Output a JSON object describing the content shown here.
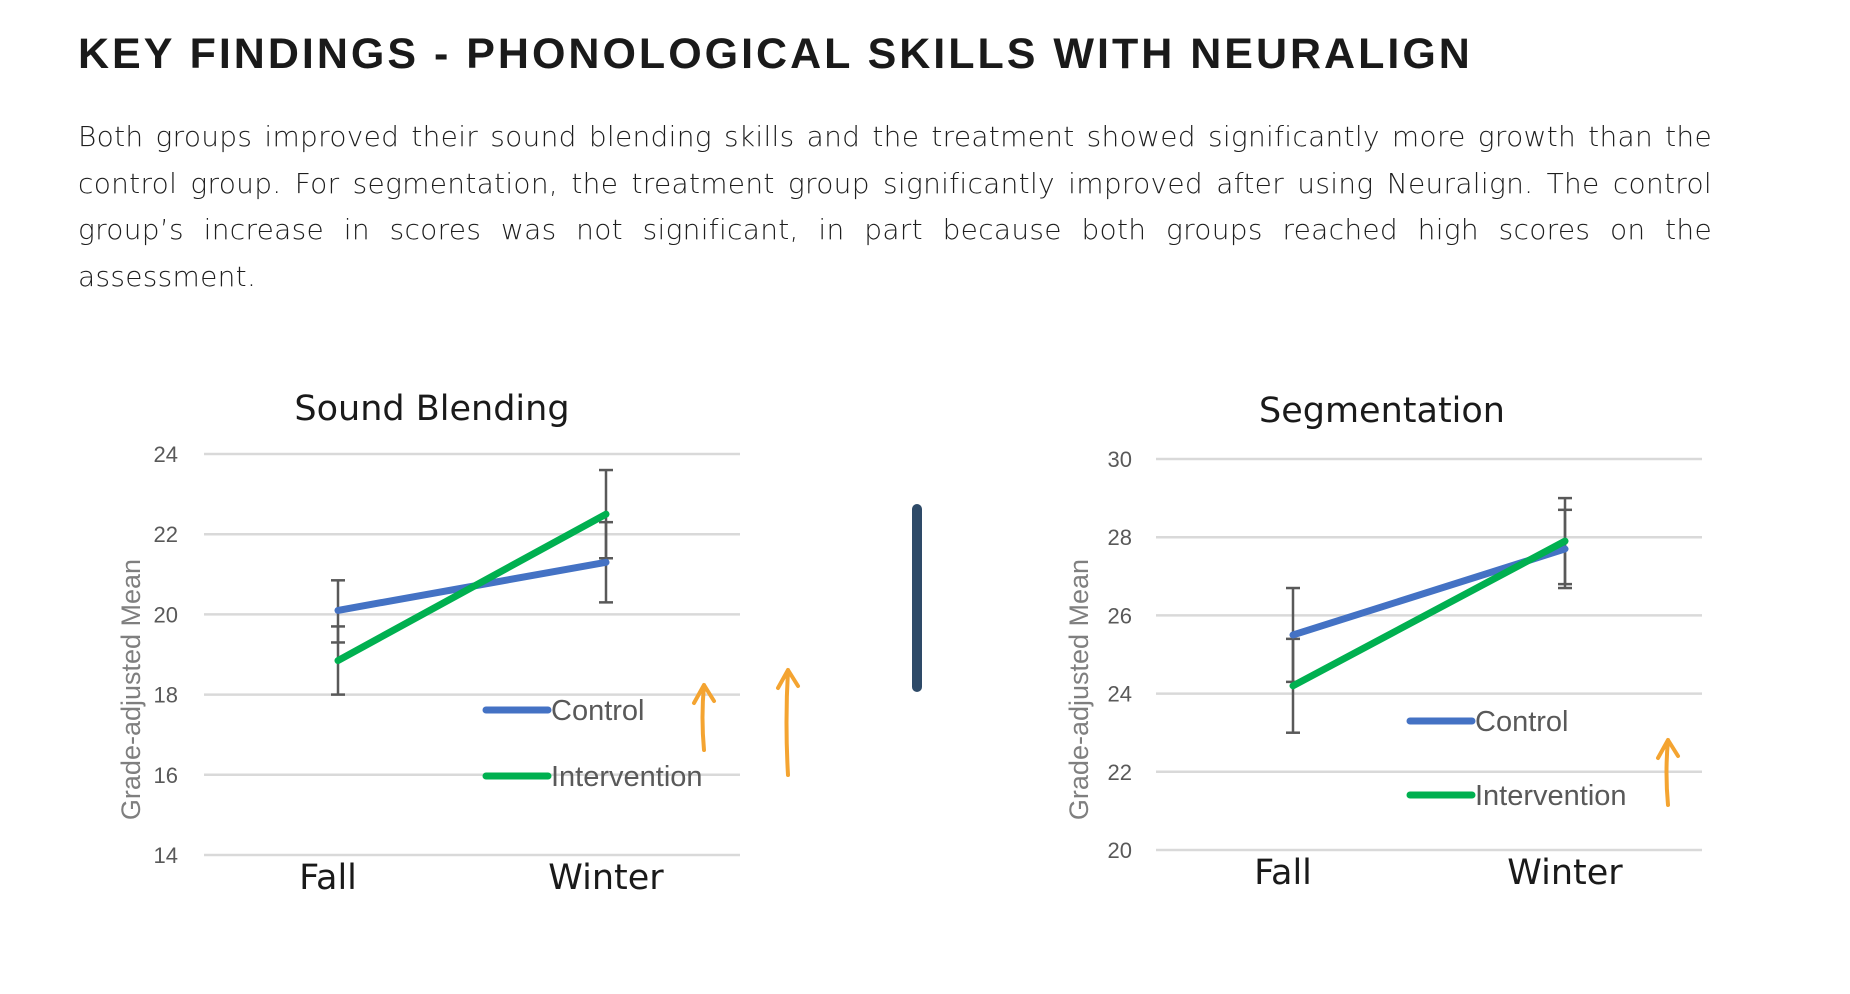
{
  "header": {
    "title": "KEY FINDINGS - PHONOLOGICAL SKILLS WITH NEURALIGN",
    "paragraph": "Both groups improved their sound blending skills and the treatment showed significantly more growth than the control group. For segmentation, the treatment group significantly improved after using Neuralign.  The control group’s increase in scores was not significant, in part because both groups reached high scores on the assessment."
  },
  "colors": {
    "control": "#4472c4",
    "intervention": "#00b050",
    "annotation_arrow": "#f4a431",
    "divider": "#2e4a68",
    "gridline": "#d9d9d9",
    "axis_text": "#595959"
  },
  "chart_data": [
    {
      "type": "line",
      "title": "Sound Blending",
      "xlabel": "",
      "ylabel": "Grade-adjusted Mean",
      "categories": [
        "Fall",
        "Winter"
      ],
      "ylim": [
        14,
        24
      ],
      "yticks": [
        14,
        16,
        18,
        20,
        22,
        24
      ],
      "grid": true,
      "legend_position": "inside-bottom-right",
      "series": [
        {
          "name": "Control",
          "values": [
            20.1,
            21.3
          ],
          "error_low": [
            19.3,
            20.3
          ],
          "error_high": [
            20.85,
            22.3
          ]
        },
        {
          "name": "Intervention",
          "values": [
            18.85,
            22.5
          ],
          "error_low": [
            18.0,
            21.4
          ],
          "error_high": [
            19.7,
            23.6
          ]
        }
      ],
      "annotations": [
        "hand-drawn upward arrow",
        "hand-drawn upward arrow"
      ]
    },
    {
      "type": "line",
      "title": "Segmentation",
      "xlabel": "",
      "ylabel": "Grade-adjusted Mean",
      "categories": [
        "Fall",
        "Winter"
      ],
      "ylim": [
        20,
        30
      ],
      "yticks": [
        20,
        22,
        24,
        26,
        28,
        30
      ],
      "grid": true,
      "legend_position": "inside-bottom-right",
      "series": [
        {
          "name": "Control",
          "values": [
            25.5,
            27.7
          ],
          "error_low": [
            24.3,
            26.7
          ],
          "error_high": [
            26.7,
            28.7
          ]
        },
        {
          "name": "Intervention",
          "values": [
            24.2,
            27.9
          ],
          "error_low": [
            23.0,
            26.8
          ],
          "error_high": [
            25.4,
            29.0
          ]
        }
      ],
      "annotations": [
        "hand-drawn upward arrow"
      ]
    }
  ]
}
